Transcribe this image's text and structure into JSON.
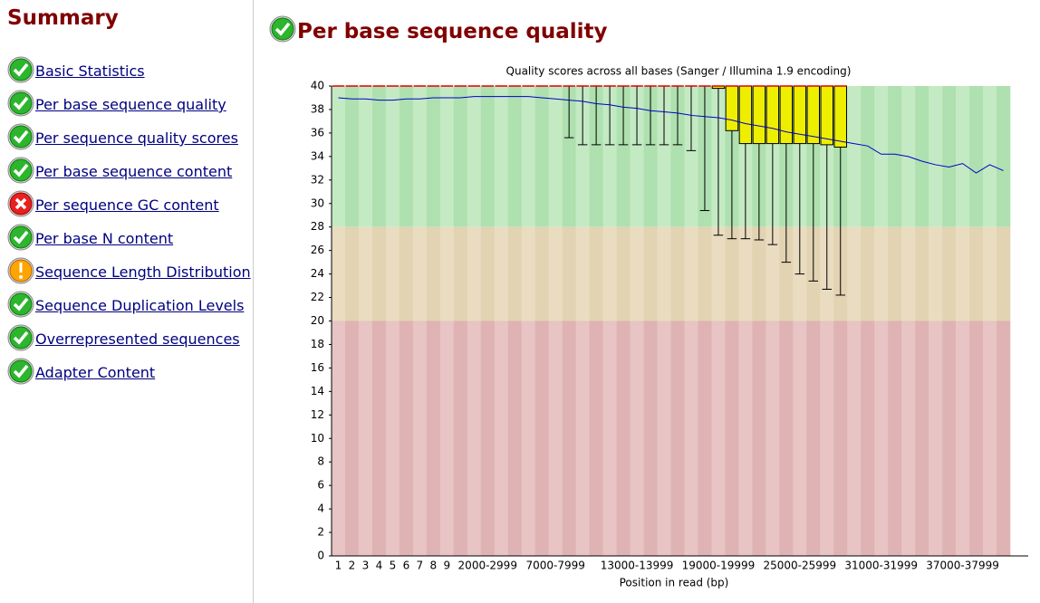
{
  "summary": {
    "title": "Summary",
    "items": [
      {
        "label": "Basic Statistics",
        "status": "pass"
      },
      {
        "label": "Per base sequence quality",
        "status": "pass"
      },
      {
        "label": "Per sequence quality scores",
        "status": "pass"
      },
      {
        "label": "Per base sequence content",
        "status": "pass"
      },
      {
        "label": "Per sequence GC content",
        "status": "fail"
      },
      {
        "label": "Per base N content",
        "status": "pass"
      },
      {
        "label": "Sequence Length Distribution",
        "status": "warn"
      },
      {
        "label": "Sequence Duplication Levels",
        "status": "pass"
      },
      {
        "label": "Overrepresented sequences",
        "status": "pass"
      },
      {
        "label": "Adapter Content",
        "status": "pass"
      }
    ]
  },
  "module": {
    "title": "Per base sequence quality",
    "status": "pass"
  },
  "chart_data": {
    "type": "box",
    "title": "Quality scores across all bases (Sanger / Illumina 1.9 encoding)",
    "x_label": "Position in read (bp)",
    "categories": [
      "1",
      "2",
      "3",
      "4",
      "5",
      "6",
      "7",
      "8",
      "9",
      null,
      null,
      "2000-2999",
      null,
      null,
      null,
      null,
      "7000-7999",
      null,
      null,
      null,
      null,
      null,
      "13000-13999",
      null,
      null,
      null,
      null,
      null,
      "19000-19999",
      null,
      null,
      null,
      null,
      null,
      "25000-25999",
      null,
      null,
      null,
      null,
      null,
      "31000-31999",
      null,
      null,
      null,
      null,
      null,
      "37000-37999",
      null,
      null,
      null
    ],
    "ylim": [
      0,
      40
    ],
    "yticks": [
      0,
      2,
      4,
      6,
      8,
      10,
      12,
      14,
      16,
      18,
      20,
      22,
      24,
      26,
      28,
      30,
      32,
      34,
      36,
      38,
      40
    ],
    "bands": [
      {
        "from": 28,
        "to": 40,
        "colors": [
          "#c4eac4",
          "#afe0af"
        ]
      },
      {
        "from": 20,
        "to": 28,
        "colors": [
          "#eadcc0",
          "#e2d3b3"
        ]
      },
      {
        "from": 0,
        "to": 20,
        "colors": [
          "#e8c4c4",
          "#dfb3b3"
        ]
      }
    ],
    "series": [
      {
        "color": "#0000c8",
        "values": [
          39.0,
          38.9,
          38.9,
          38.8,
          38.8,
          38.9,
          38.9,
          39.0,
          39.0,
          39.0,
          39.1,
          39.1,
          39.1,
          39.1,
          39.1,
          39.0,
          38.9,
          38.8,
          38.7,
          38.5,
          38.4,
          38.2,
          38.1,
          37.9,
          37.8,
          37.7,
          37.5,
          37.4,
          37.3,
          37.1,
          36.8,
          36.6,
          36.4,
          36.1,
          35.9,
          35.7,
          35.5,
          35.3,
          35.1,
          34.9,
          34.2,
          34.2,
          34.0,
          33.6,
          33.3,
          33.1,
          33.4,
          32.6,
          33.3,
          32.8
        ]
      }
    ],
    "box": {
      "color": "#eeee00",
      "median_color": "#e00000",
      "whisker_low": [
        40,
        40,
        40,
        40,
        40,
        40,
        40,
        40,
        40,
        40,
        40,
        40,
        40,
        40,
        40,
        40,
        40,
        35.6,
        35.0,
        35.0,
        35.0,
        35.0,
        35.0,
        35.0,
        35.0,
        35.0,
        34.5,
        29.4,
        27.3,
        27.0,
        27.0,
        26.9,
        26.5,
        25.0,
        24.0,
        23.4,
        22.7,
        22.2,
        null,
        null,
        null,
        null,
        null,
        null,
        null,
        null,
        null,
        null,
        null,
        null
      ],
      "q1": [
        40,
        40,
        40,
        40,
        40,
        40,
        40,
        40,
        40,
        40,
        40,
        40,
        40,
        40,
        40,
        40,
        40,
        40,
        40,
        40,
        40,
        40,
        40,
        40,
        40,
        40,
        40,
        40,
        39.8,
        36.2,
        35.1,
        35.1,
        35.1,
        35.1,
        35.1,
        35.1,
        35.0,
        34.8,
        null,
        null,
        null,
        null,
        null,
        null,
        null,
        null,
        null,
        null,
        null,
        null
      ],
      "median": [
        40,
        40,
        40,
        40,
        40,
        40,
        40,
        40,
        40,
        40,
        40,
        40,
        40,
        40,
        40,
        40,
        40,
        40,
        40,
        40,
        40,
        40,
        40,
        40,
        40,
        40,
        40,
        40,
        40,
        40,
        40,
        40,
        40,
        40,
        40,
        40,
        40,
        40,
        null,
        null,
        null,
        null,
        null,
        null,
        null,
        null,
        null,
        null,
        null,
        null
      ],
      "q3": [
        40,
        40,
        40,
        40,
        40,
        40,
        40,
        40,
        40,
        40,
        40,
        40,
        40,
        40,
        40,
        40,
        40,
        40,
        40,
        40,
        40,
        40,
        40,
        40,
        40,
        40,
        40,
        40,
        40,
        40,
        40,
        40,
        40,
        40,
        40,
        40,
        40,
        40,
        null,
        null,
        null,
        null,
        null,
        null,
        null,
        null,
        null,
        null,
        null,
        null
      ],
      "whisker_high": [
        40,
        40,
        40,
        40,
        40,
        40,
        40,
        40,
        40,
        40,
        40,
        40,
        40,
        40,
        40,
        40,
        40,
        40,
        40,
        40,
        40,
        40,
        40,
        40,
        40,
        40,
        40,
        40,
        40,
        40,
        40,
        40,
        40,
        40,
        40,
        40,
        40,
        40,
        null,
        null,
        null,
        null,
        null,
        null,
        null,
        null,
        null,
        null,
        null,
        null
      ]
    }
  }
}
